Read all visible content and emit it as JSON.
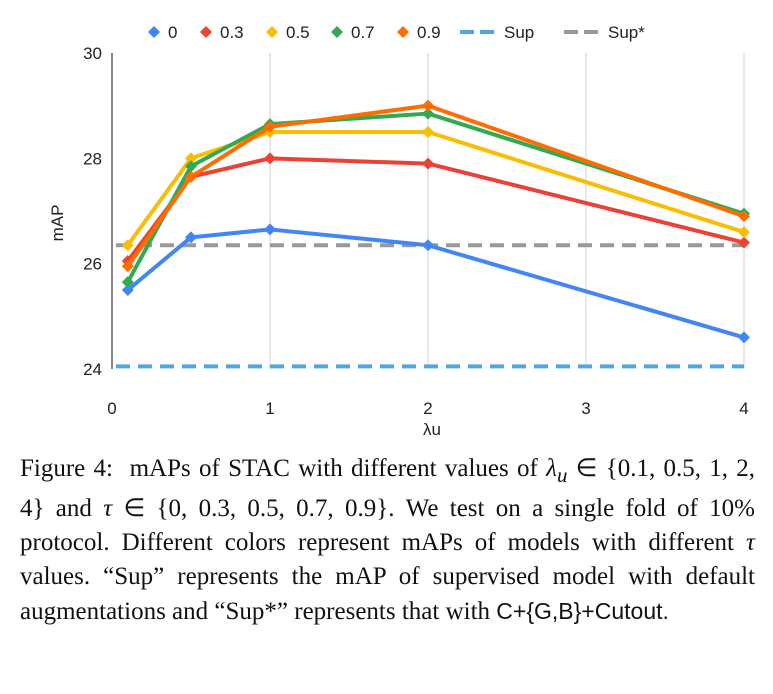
{
  "chart_data": {
    "type": "line",
    "xlabel": "λu",
    "ylabel": "mAP",
    "xlim": [
      0,
      4
    ],
    "ylim": [
      24,
      30
    ],
    "x_ticks": [
      0,
      1,
      2,
      3,
      4
    ],
    "y_ticks": [
      24,
      26,
      28,
      30
    ],
    "grid": "vertical",
    "legend_position": "top",
    "x": [
      0.1,
      0.5,
      1,
      2,
      4
    ],
    "series": [
      {
        "name": "0",
        "color": "#4285f4",
        "values": [
          25.5,
          26.5,
          26.65,
          26.35,
          24.6
        ]
      },
      {
        "name": "0.3",
        "color": "#ea4335",
        "values": [
          26.05,
          27.65,
          28.0,
          27.9,
          26.4
        ]
      },
      {
        "name": "0.5",
        "color": "#fbbc04",
        "values": [
          26.35,
          28.0,
          28.5,
          28.5,
          26.6
        ]
      },
      {
        "name": "0.7",
        "color": "#34a853",
        "values": [
          25.65,
          27.85,
          28.65,
          28.85,
          26.95
        ]
      },
      {
        "name": "0.9",
        "color": "#ff6d01",
        "values": [
          25.95,
          27.65,
          28.6,
          29.0,
          26.9
        ]
      }
    ],
    "reference_lines": [
      {
        "name": "Sup",
        "color": "#4ea9e0",
        "value": 24.05
      },
      {
        "name": "Sup*",
        "color": "#999999",
        "value": 26.35
      }
    ]
  },
  "caption": {
    "label": "Figure 4:",
    "seg1": "mAPs of STAC with different values of",
    "lambda_symbol": "λ",
    "lambda_sub": "u",
    "in_symbol": "∈",
    "lambda_set": "{0.1, 0.5, 1, 2, 4}",
    "and_word": "and",
    "tau_symbol": "τ",
    "tau_set": "{0, 0.3, 0.5, 0.7, 0.9}.",
    "seg2": "We test on a single fold of 10% protocol. Different colors represent mAPs of models with different",
    "tau_symbol_2": "τ",
    "seg3": "values. “Sup” represents the mAP of supervised model with default augmentations and “Sup*” represents that with",
    "sans_part": "C+{G,B}+Cutout."
  }
}
